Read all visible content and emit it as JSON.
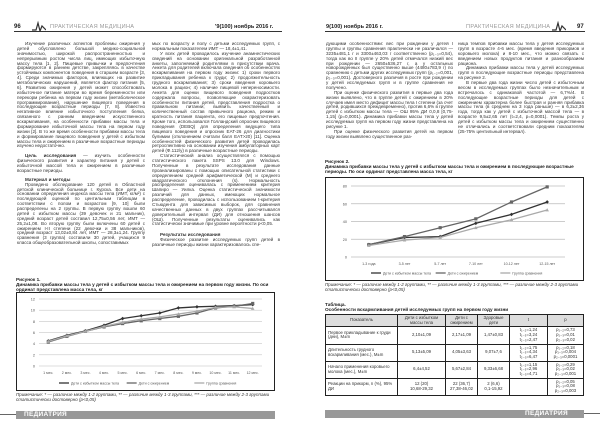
{
  "left_page": {
    "page_number": "96",
    "journal_title": "ПРАКТИЧЕСКАЯ МЕДИЦИНА",
    "issue": "'9(100) ноябрь 2016 г.",
    "col1": [
      "Изучение различных аспектов проблемы ожирения у детей обусловлено большой медико-социальной значимостью, широкой распространенностью и непрерывным ростом числа лиц, имеющих избыточную массу тела [1, 2]. Пищевые привычки и предпочтения формируются в раннем детстве, закрепляясь в качестве устойчивых компонентов поведения в старшем возрасте [3, 4]. Среди значимых факторов, влияющих на развитие метаболических нарушений, является фактор питания [5, 6]. Развитию ожирения у детей может способствовать избыточное питание матери во время беременности или перекорм ребенка на первом году жизни (метаболическое программирование), нарушение пищевого поведения в последующие возрастные периоды [7, 8]. Известно негативное влияние избыточного поступления белка, связанного с ранним введением искусственного вскармливания, на особенности прибавки массы тела и формирование избыточной массы тела на первом году жизни [2]. В то же время особенности прибавки массы тела и формирование пищевого поведения у детей с избытком массы тела и ожирением в различные возрастные периоды изучено недостаточно."
    ],
    "aim_heading": "Цель исследования",
    "aim_text": " — изучить особенности физического развития и характер питания у детей с избыточной массой тела и ожирением в различные возрастные периоды.",
    "methods_heading": "Материал и методы",
    "methods_text": "Проведено обследование 120 детей в Областной детской клинической больнице г. Курска. Все дети на основании определения индекса массы тела (ИМТ, кг/м²) с последующей оценкой по центильным таблицам в соответствии с полом и возрастом [9, 10] были распределены на 2 группы. В первую группу вошли 60 детей с избытком массы (39 девочек и 21 мальчик), средний возраст детей составил 12,75±0,56 лет, ИМТ — 25,2±1,08. Во вторую группу были включены 60 детей с ожирением I-II степени (22 девочки и 38 мальчиков), средний возраст 13,02±0,84 лет, ИМТ — 28,3±1,24. Группу сравнения (3 группа) составили 30 детей, учащихся 9 класса общеобразовательной школы, сопоставимых",
    "col2": [
      "мых по возрасту и полу с детьми исследуемых групп, с нормальным показателем ИМТ — 18,4±1,41.",
      "У всех детей проводилось изучение анамнестических сведений на основании оригинальной разработанной анкеты, заполняемой родителями в присутствии врача. Анкета для родителей включала сведения об особенностях вскармливания на первом году жизни: 1) сроки первого прикладывания ребенка к груди; 2) продолжительность грудного вскармливания; 3) сроки введения коровьего молока в рацион; 4) наличие пищевой непереносимости. Анкета для оценки пищевого поведения подростков содержала вопросы, позволяющие охарактеризовать особенности питания детей, представления подростка о правильном питании; выявить качественный и количественный состав привычного рациона, режим и кратность питания пациента, его пищевые предпочтения. Кроме того, использовался Голландский опросник пищевого поведения (DEBQ) для определения ведущего типа пищевого поведения и опросник EAT-26 для диагностики булимии (отклонением считали балл EAT>20) [11]. Оценка особенностей физического развития детей проводилась ретроспективно на основании изучения амбулаторных карт детей (Ф.112/у) в различные возрастные периоды.",
      "Статистический анализ осуществлялся с помощью статистического пакета SSPS 13.0 для Windows. Полученные в результате исследования данные проанализированы с помощью описательной статистики с определением средней арифметической (M) и среднего квадратического отклонения (s). Нормальность распределения оценивалась с применением критерия Шапиро — Уилка. Оценка статистической значимости различий для данных, имеющих нормальное распределение, проводилась с использованием t-критерия Стьюдента для зависимых выборок, для сравнения качественных данных в двух группах рассчитывался доверительный интервал (ДИ) для отношения шансов (ОШ). Полученные результаты оценивались как статистически значимые при уровне вероятности p<0,05."
    ],
    "results_heading": "Результаты исследования",
    "results_text": "Физическое развитие исследуемых групп детей в различные периоды жизни характеризовалось спе-",
    "figure1": {
      "label": "Рисунок 1.",
      "caption": "Динамика прибавки массы тела у детей с избытком массы тела и ожирением на первом году жизни. По оси ординат представлена масса тела, кг",
      "note": "Примечание: * — различие между 1-2 группами, ** — различие между 1-3 группами, *** — различие между 2-3 группами статистически достоверно (p<0,05)"
    },
    "footer": "ПЕДИАТРИЯ"
  },
  "right_page": {
    "page_number": "97",
    "journal_title": "ПРАКТИЧЕСКАЯ МЕДИЦИНА",
    "issue": "9(100) ноябрь 2016 г.",
    "col1": [
      "дующими особенностями: вес при рождении у детей I группы и группы сравнения практически не различался — 3235±481,1 г и 3300±463,03 г соответственно (p₁₋₃=0,54), тогда как во II группе у 20% детей отмечался низкий вес при рождении — 2650±536,27 г, а у остальных новорожденных был существенно выше (4480±783,9 г) по сравнению с детьми других исследуемых групп (p₁₋₂=0,001, p₂₋₃=0,001). Достоверного различия в росте при рождении у детей исследуемых групп и в группе сравнения не получено.",
      "При оценке физического развития в первые два года жизни выявлено, что в группе детей с ожирением в 20% случаев имел место дефицит массы тела I степени (за счет детей, родившихся преждевременно), против 6,6% в группе детей с избытком массы тела — ОШ 95% ДИ 0,0,8 [0,75-1,15] (p=0,0001). Динамика прибавки массы тела у детей исследуемых групп на первом году жизни представлена на рисунке 1.",
      "При оценке физического развития детей на первом году жизни выявлено существенное раз-"
    ],
    "col2": [
      "ница темпов прибавки массы тела у детей исследуемых групп в возрасте 4-6 мес. (время введения прикормов и коровьего молока) и 8-10 мес., что можно связать с введением новых продуктов питания и разнообразием рациона.",
      "Динамика прибавки массы тела у детей исследуемых групп в последующие возрастные периоды представлена на рисунке 2.",
      "В первые два года жизни число детей с избыточным весом в исследуемых группах было незначительным и встречалось с одинаковой частотой — 6,7%/4. В последующие возрастные периоды для детей с ожирением характерна более быстрая и ранняя прибавка массы тела (в среднем на 3 года раньше) — в 6,2±2,36 года, тогда как у детей с избыточной массой тела — в возрасте 9,5±2,65 лет (t=2,4, p=0,0001). Темпы роста у детей с избытком массы тела и ожирением существенно не отличались и соответствовали средним показателям (25-75% центильный интервал)."
    ],
    "figure2": {
      "label": "Рисунок 2.",
      "caption": "Динамика прибавки массы тела у детей с избытком массы тела и ожирением в последующие возрастные периоды. По оси ординат представлена масса тела, кг",
      "note": "Примечание: * — различие между 1-2 группами, ** — различие между 1-3 группами, *** — различие между 2-3 группами статистически достоверно (p<0,05)"
    },
    "table": {
      "label": "Таблица.",
      "caption": "Особенности вскармливания детей исследуемых групп на первом году жизни",
      "headers": [
        "Показатель",
        "Дети с избытком массы тела",
        "Дети с ожирением",
        "Здоровые дети",
        "t",
        "p"
      ],
      "rows": [
        [
          "Первое прикладывание к груди (дни), M±m",
          "2,10±1,09",
          "2,17±1,09",
          "1,47±0,83",
          "t₁₋₂=1,24\nt₁₋₃=3,24\nt₂₋₃=2,47",
          "p₁₋₂=0,73\np₁₋₃=0,01\np₂₋₃=0,02"
        ],
        [
          "Длительность грудного вскармливания (мес.), M±m",
          "5,13±5,09",
          "4,05±3,63",
          "9,07±7,6",
          "t₁₋₂=1,75\nt₁₋₃=4,34\nt₂₋₃=6,47",
          "p₁₋₂=0,18\np₁₋₃=0,004\np₂₋₃=0,0001"
        ],
        [
          "Начало применения коровьего молока (мес.), M±m",
          "6,4±4,52",
          "5,67±2,84",
          "9,33±6,68",
          "t₁₋₂=1,15\nt₁₋₃=2,96\nt₂₋₃=4,71",
          "p₁₋₂=0,29\np₁₋₃=0,02\np₂₋₃=0,001"
        ],
        [
          "Реакции на прикорм, n (%), 95% ДИ",
          "12 (20)\n10,68-29,32",
          "22 (36,7)\n27,38-46,02",
          "2 (6,6)\n0,1-15,92",
          "",
          "p₁₋₂=0,05\np₁₋₃=0,08\np₂₋₃=0,003"
        ]
      ]
    },
    "footer": "ПЕДИАТРИЯ"
  },
  "chart_data": [
    {
      "type": "line",
      "title": "",
      "ylabel": "масса тела, кг",
      "ylim": [
        0,
        12
      ],
      "yticks": [
        0,
        2,
        4,
        6,
        8,
        10,
        12
      ],
      "grid": true,
      "legend": "bottom",
      "categories": [
        "1 мес.",
        "2 мес.",
        "3 мес.",
        "4 мес.",
        "5 мес.",
        "6 мес.",
        "7 мес.",
        "8 мес.",
        "9 мес.",
        "10 мес.",
        "11 мес.",
        "12 мес."
      ],
      "series": [
        {
          "name": "Дети с избытком массы тела",
          "color": "#333333",
          "values": [
            4.5,
            5.5,
            6.3,
            7.3,
            8.5,
            9.0,
            9.5,
            10.4,
            10.6,
            10.7,
            10.8,
            11.0
          ]
        },
        {
          "name": "Дети с ожирением",
          "color": "#666666",
          "values": [
            4.3,
            5.3,
            6.2,
            7.0,
            7.6,
            8.1,
            8.5,
            8.9,
            9.5,
            10.4,
            10.7,
            11.2
          ]
        },
        {
          "name": "Группа сравнения",
          "color": "#aaaaaa",
          "values": [
            4.4,
            5.4,
            6.2,
            7.1,
            7.8,
            8.4,
            8.8,
            9.3,
            9.8,
            10.5,
            10.6,
            10.3
          ]
        }
      ]
    },
    {
      "type": "line",
      "title": "",
      "ylabel": "масса тела, кг",
      "ylim": [
        0,
        80
      ],
      "yticks": [
        0,
        20,
        40,
        60,
        80
      ],
      "grid": true,
      "legend": "bottom",
      "categories": [
        "1-3 года",
        "3-5 лет",
        "5-7 лет",
        "7-10 лет",
        "10-12 лет",
        "12-15 лет"
      ],
      "series": [
        {
          "name": "Дети с избытком массы тела",
          "color": "#333333",
          "values": [
            14,
            22,
            23,
            38,
            48,
            62
          ]
        },
        {
          "name": "Дети с ожирением",
          "color": "#666666",
          "values": [
            14,
            23,
            33,
            43,
            62,
            79
          ]
        },
        {
          "name": "Группа сравнения",
          "color": "#aaaaaa",
          "values": [
            13,
            19,
            22,
            33,
            42,
            53
          ]
        }
      ]
    }
  ]
}
